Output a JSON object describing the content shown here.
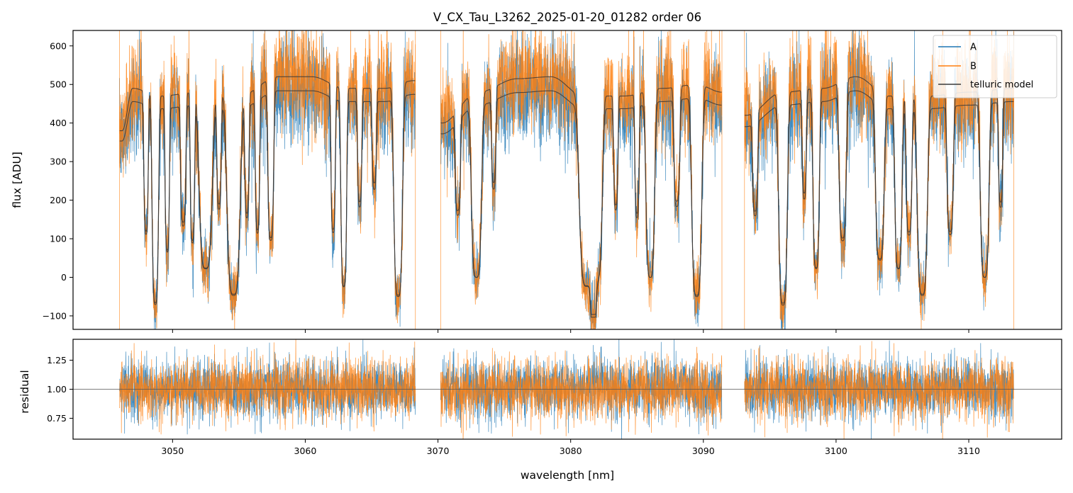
{
  "chart_data": [
    {
      "type": "line",
      "panel": "flux",
      "title": "V_CX_Tau_L3262_2025-01-20_01282  order 06",
      "xlabel": "",
      "ylabel": "flux [ADU]",
      "xlim": [
        3042.5,
        3117
      ],
      "ylim": [
        -135,
        640
      ],
      "yticks": [
        -100,
        0,
        100,
        200,
        300,
        400,
        500,
        600
      ],
      "ytick_labels": [
        "−100",
        "0",
        "100",
        "200",
        "300",
        "400",
        "500",
        "600"
      ],
      "xticks": [
        3050,
        3060,
        3070,
        3080,
        3090,
        3100,
        3110
      ],
      "segments": [
        [
          3046.0,
          3068.3
        ],
        [
          3070.2,
          3091.4
        ],
        [
          3093.1,
          3113.4
        ]
      ],
      "continuum_model": [
        {
          "x": 3046.2,
          "y": 380
        },
        {
          "x": 3047.0,
          "y": 490
        },
        {
          "x": 3049.0,
          "y": 470
        },
        {
          "x": 3052.0,
          "y": 480
        },
        {
          "x": 3055.0,
          "y": 470
        },
        {
          "x": 3058.0,
          "y": 520
        },
        {
          "x": 3060.5,
          "y": 520
        },
        {
          "x": 3063.0,
          "y": 490
        },
        {
          "x": 3066.0,
          "y": 490
        },
        {
          "x": 3068.2,
          "y": 510
        },
        {
          "x": 3070.3,
          "y": 400
        },
        {
          "x": 3073.0,
          "y": 480
        },
        {
          "x": 3076.0,
          "y": 515
        },
        {
          "x": 3078.5,
          "y": 520
        },
        {
          "x": 3081.0,
          "y": 470
        },
        {
          "x": 3084.0,
          "y": 470
        },
        {
          "x": 3087.0,
          "y": 490
        },
        {
          "x": 3089.5,
          "y": 500
        },
        {
          "x": 3091.4,
          "y": 480
        },
        {
          "x": 3093.2,
          "y": 420
        },
        {
          "x": 3096.0,
          "y": 480
        },
        {
          "x": 3099.0,
          "y": 490
        },
        {
          "x": 3101.5,
          "y": 520
        },
        {
          "x": 3104.0,
          "y": 470
        },
        {
          "x": 3107.0,
          "y": 470
        },
        {
          "x": 3110.0,
          "y": 480
        },
        {
          "x": 3113.4,
          "y": 490
        }
      ],
      "absorption_lines": [
        {
          "x": 3048.0,
          "depth": 0.75,
          "width": 0.15
        },
        {
          "x": 3048.7,
          "depth": 1.15,
          "width": 0.22
        },
        {
          "x": 3049.6,
          "depth": 0.85,
          "width": 0.15
        },
        {
          "x": 3050.8,
          "depth": 0.7,
          "width": 0.18
        },
        {
          "x": 3051.5,
          "depth": 0.8,
          "width": 0.15
        },
        {
          "x": 3052.5,
          "depth": 0.95,
          "width": 0.45
        },
        {
          "x": 3053.5,
          "depth": 0.6,
          "width": 0.15
        },
        {
          "x": 3054.6,
          "depth": 1.1,
          "width": 0.45
        },
        {
          "x": 3055.6,
          "depth": 0.65,
          "width": 0.15
        },
        {
          "x": 3056.4,
          "depth": 0.75,
          "width": 0.15
        },
        {
          "x": 3057.4,
          "depth": 0.8,
          "width": 0.2
        },
        {
          "x": 3062.1,
          "depth": 0.75,
          "width": 0.15
        },
        {
          "x": 3062.9,
          "depth": 1.05,
          "width": 0.2
        },
        {
          "x": 3064.1,
          "depth": 0.6,
          "width": 0.15
        },
        {
          "x": 3065.2,
          "depth": 0.5,
          "width": 0.15
        },
        {
          "x": 3067.0,
          "depth": 1.1,
          "width": 0.3
        },
        {
          "x": 3071.5,
          "depth": 0.6,
          "width": 0.18
        },
        {
          "x": 3072.9,
          "depth": 1.0,
          "width": 0.35
        },
        {
          "x": 3074.2,
          "depth": 0.5,
          "width": 0.15
        },
        {
          "x": 3081.2,
          "depth": 1.05,
          "width": 0.5
        },
        {
          "x": 3082.0,
          "depth": 1.0,
          "width": 0.35
        },
        {
          "x": 3083.4,
          "depth": 0.6,
          "width": 0.15
        },
        {
          "x": 3085.0,
          "depth": 0.65,
          "width": 0.15
        },
        {
          "x": 3086.0,
          "depth": 1.0,
          "width": 0.3
        },
        {
          "x": 3088.0,
          "depth": 0.6,
          "width": 0.2
        },
        {
          "x": 3089.5,
          "depth": 1.1,
          "width": 0.35
        },
        {
          "x": 3093.9,
          "depth": 0.6,
          "width": 0.18
        },
        {
          "x": 3096.0,
          "depth": 1.15,
          "width": 0.3
        },
        {
          "x": 3097.6,
          "depth": 0.55,
          "width": 0.15
        },
        {
          "x": 3098.5,
          "depth": 0.95,
          "width": 0.22
        },
        {
          "x": 3100.5,
          "depth": 0.8,
          "width": 0.25
        },
        {
          "x": 3103.3,
          "depth": 0.9,
          "width": 0.3
        },
        {
          "x": 3104.7,
          "depth": 0.95,
          "width": 0.25
        },
        {
          "x": 3105.5,
          "depth": 0.75,
          "width": 0.2
        },
        {
          "x": 3106.5,
          "depth": 1.1,
          "width": 0.35
        },
        {
          "x": 3108.6,
          "depth": 0.75,
          "width": 0.22
        },
        {
          "x": 3111.2,
          "depth": 1.0,
          "width": 0.3
        },
        {
          "x": 3112.4,
          "depth": 0.6,
          "width": 0.15
        }
      ],
      "noise_amplitude": 70,
      "series": [
        {
          "name": "A",
          "color": "#1f77b4",
          "scale": 0.93
        },
        {
          "name": "B",
          "color": "#ff7f0e",
          "scale": 1.0
        },
        {
          "name": "telluric model",
          "color": "#3a3a3a"
        }
      ],
      "legend": "top-right",
      "grid": false
    },
    {
      "type": "line",
      "panel": "residual",
      "xlabel": "wavelength [nm]",
      "ylabel": "residual",
      "xlim": [
        3042.5,
        3117
      ],
      "ylim": [
        0.57,
        1.43
      ],
      "yticks": [
        0.75,
        1.0,
        1.25
      ],
      "ytick_labels": [
        "0.75",
        "1.00",
        "1.25"
      ],
      "xticks": [
        3050,
        3060,
        3070,
        3080,
        3090,
        3100,
        3110
      ],
      "xtick_labels": [
        "3050",
        "3060",
        "3070",
        "3080",
        "3090",
        "3100",
        "3110"
      ],
      "reference_line": 1.0,
      "noise_sigma": 0.13,
      "series": [
        {
          "name": "A",
          "color": "#1f77b4"
        },
        {
          "name": "B",
          "color": "#ff7f0e"
        }
      ],
      "grid": false
    }
  ]
}
